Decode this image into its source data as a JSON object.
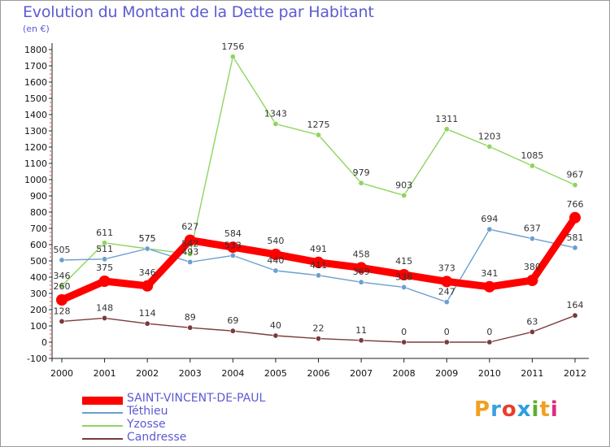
{
  "header": {
    "title": "Evolution du Montant de la Dette par Habitant",
    "subtitle": "(en €)"
  },
  "logo": {
    "letters": [
      "P",
      "r",
      "o",
      "x",
      "i",
      "t",
      "i"
    ],
    "colors": [
      "#f0a020",
      "#3aa0e0",
      "#e83e2a",
      "#2aa0e0",
      "#5ab030",
      "#f0a020",
      "#e02a80"
    ]
  },
  "chart_data": {
    "type": "line",
    "x": [
      "2000",
      "2001",
      "2002",
      "2003",
      "2004",
      "2005",
      "2006",
      "2007",
      "2008",
      "2009",
      "2010",
      "2011",
      "2012"
    ],
    "ylim": [
      -100,
      1800
    ],
    "yticks": [
      "-100",
      "0",
      "100",
      "200",
      "300",
      "400",
      "500",
      "600",
      "700",
      "800",
      "900",
      "1000",
      "1100",
      "1200",
      "1300",
      "1400",
      "1500",
      "1600",
      "1700",
      "1800"
    ],
    "grid": false,
    "legend_position": "bottom-left",
    "series": [
      {
        "name": "Yzosse",
        "color": "#8fd460",
        "values": [
          346,
          611,
          575,
          542,
          1756,
          1343,
          1275,
          979,
          903,
          1311,
          1203,
          1085,
          967
        ],
        "labels": [
          "346",
          "611",
          "575",
          "542",
          "1756",
          "1343",
          "1275",
          "979",
          "903",
          "1311",
          "1203",
          "1085",
          "967"
        ]
      },
      {
        "name": "Téthieu",
        "color": "#6b9fcf",
        "values": [
          505,
          511,
          575,
          493,
          533,
          440,
          411,
          369,
          338,
          247,
          694,
          637,
          581
        ],
        "labels": [
          "505",
          "511",
          "575",
          "493",
          "533",
          "440",
          "411",
          "369",
          "338",
          "247",
          "694",
          "637",
          "581"
        ]
      },
      {
        "name": "Candresse",
        "color": "#7a3b3b",
        "values": [
          128,
          148,
          114,
          89,
          69,
          40,
          22,
          11,
          0,
          0,
          0,
          63,
          164
        ],
        "labels": [
          "128",
          "148",
          "114",
          "89",
          "69",
          "40",
          "22",
          "11",
          "0",
          "0",
          "0",
          "63",
          "164"
        ]
      },
      {
        "name": "SAINT-VINCENT-DE-PAUL",
        "color": "#ff0000",
        "values": [
          260,
          375,
          346,
          627,
          584,
          540,
          491,
          458,
          415,
          373,
          341,
          380,
          766
        ],
        "labels": [
          "260",
          "375",
          "346",
          "627",
          "584",
          "540",
          "491",
          "458",
          "415",
          "373",
          "341",
          "380",
          "766"
        ]
      }
    ]
  },
  "legend": {
    "items": [
      {
        "label": "SAINT-VINCENT-DE-PAUL",
        "color": "#ff0000"
      },
      {
        "label": "Téthieu",
        "color": "#6b9fcf"
      },
      {
        "label": "Yzosse",
        "color": "#8fd460"
      },
      {
        "label": "Candresse",
        "color": "#7a3b3b"
      }
    ]
  }
}
